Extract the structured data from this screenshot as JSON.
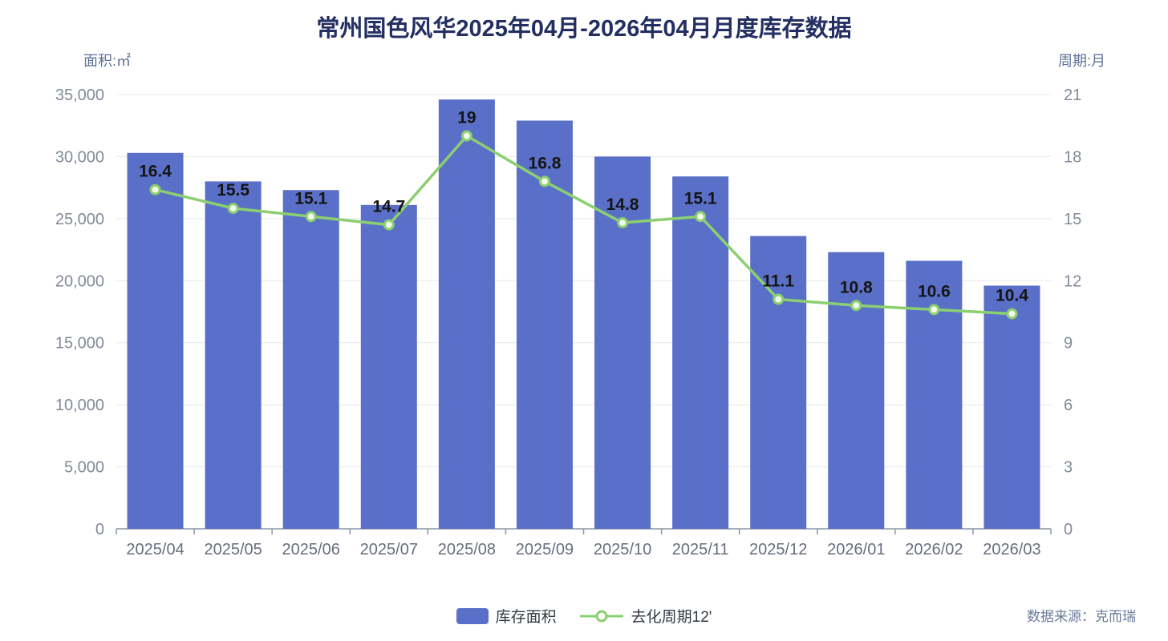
{
  "title": "常州国色风华2025年04月-2026年04月月度库存数据",
  "left_axis_unit": "面积:㎡",
  "right_axis_unit": "周期:月",
  "legend": {
    "bar_label": "库存面积",
    "line_label": "去化周期12'"
  },
  "source": "数据来源：克而瑞",
  "colors": {
    "bar": "#5a6fc8",
    "line": "#8ccf70",
    "marker_fill": "#f2f9ec",
    "title": "#232f62",
    "axis_unit": "#5f7296",
    "tick_text": "#828a99",
    "category_text": "#666e7e",
    "grid": "#e5e8ee",
    "axis_line": "#8e95a2",
    "data_label": "#141414"
  },
  "chart_data": {
    "type": "bar+line",
    "title": "常州国色风华2025年04月-2026年04月月度库存数据",
    "categories": [
      "2025/04",
      "2025/05",
      "2025/06",
      "2025/07",
      "2025/08",
      "2025/09",
      "2025/10",
      "2025/11",
      "2025/12",
      "2026/01",
      "2026/02",
      "2026/03"
    ],
    "series": [
      {
        "name": "库存面积",
        "type": "bar",
        "axis": "left",
        "values": [
          30300,
          28000,
          27300,
          26100,
          34600,
          32900,
          30000,
          28400,
          23600,
          22300,
          21600,
          19600
        ]
      },
      {
        "name": "去化周期12'",
        "type": "line",
        "axis": "right",
        "values": [
          16.4,
          15.5,
          15.1,
          14.7,
          19,
          16.8,
          14.8,
          15.1,
          11.1,
          10.8,
          10.6,
          10.4
        ]
      }
    ],
    "left_axis": {
      "label": "面积:㎡",
      "min": 0,
      "max": 35000,
      "ticks": [
        0,
        5000,
        10000,
        15000,
        20000,
        25000,
        30000,
        35000
      ]
    },
    "right_axis": {
      "label": "周期:月",
      "min": 0,
      "max": 21,
      "ticks": [
        0,
        3,
        6,
        9,
        12,
        15,
        18,
        21
      ]
    },
    "grid": true,
    "legend_position": "bottom",
    "line_point_labels": true
  }
}
